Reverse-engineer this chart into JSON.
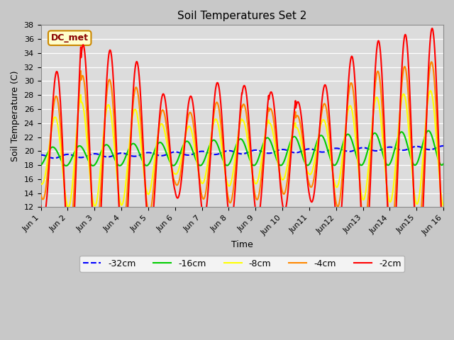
{
  "title": "Soil Temperatures Set 2",
  "xlabel": "Time",
  "ylabel": "Soil Temperature (C)",
  "ylim": [
    12,
    38
  ],
  "yticks": [
    12,
    14,
    16,
    18,
    20,
    22,
    24,
    26,
    28,
    30,
    32,
    34,
    36,
    38
  ],
  "fig_facecolor": "#c8c8c8",
  "plot_facecolor": "#dcdcdc",
  "annotation_text": "DC_met",
  "annotation_bg": "#ffffcc",
  "annotation_edge": "#cc8800",
  "annotation_text_color": "#880000",
  "series": {
    "-32cm": {
      "color": "#0000ff",
      "linewidth": 1.5,
      "linestyle": "--"
    },
    "-16cm": {
      "color": "#00cc00",
      "linewidth": 1.5,
      "linestyle": "-"
    },
    "-8cm": {
      "color": "#ffff00",
      "linewidth": 1.5,
      "linestyle": "-"
    },
    "-4cm": {
      "color": "#ff8800",
      "linewidth": 1.5,
      "linestyle": "-"
    },
    "-2cm": {
      "color": "#ff0000",
      "linewidth": 1.5,
      "linestyle": "-"
    }
  },
  "xtick_labels": [
    "Jun 1",
    "Jun 2",
    "Jun 3",
    "Jun 4",
    "Jun 5",
    "Jun 6",
    "Jun 7",
    "Jun 8",
    "Jun 9",
    "Jun 10",
    "Jun11",
    "Jun12",
    "Jun13",
    "Jun14",
    "Jun15",
    "Jun 16"
  ],
  "xtick_positions": [
    0,
    1,
    2,
    3,
    4,
    5,
    6,
    7,
    8,
    9,
    10,
    11,
    12,
    13,
    14,
    15
  ],
  "xlim": [
    0,
    15
  ]
}
